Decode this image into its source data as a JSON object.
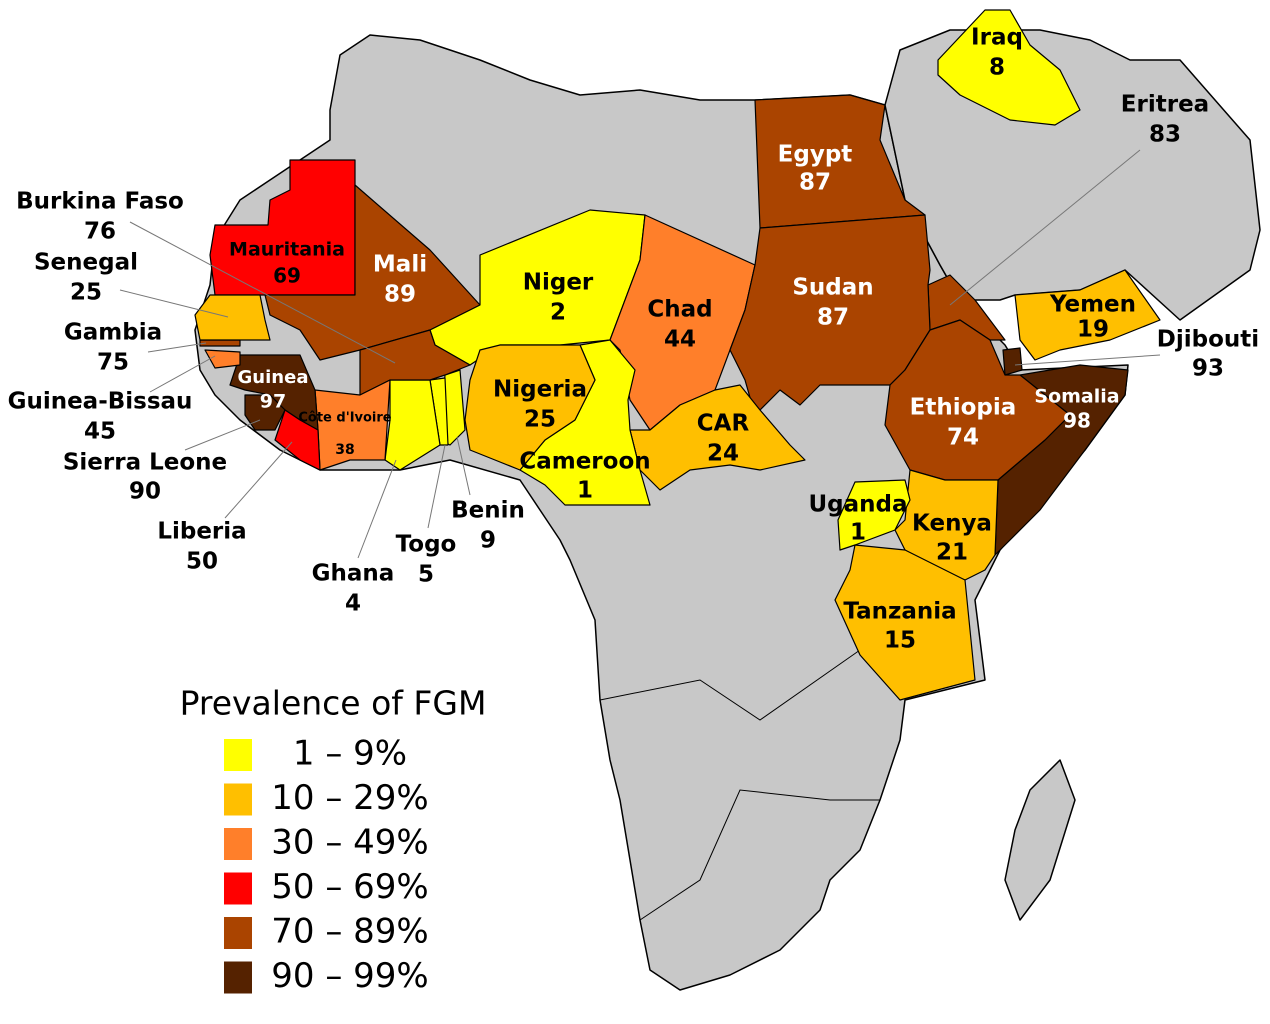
{
  "map": {
    "legend": {
      "title": "Prevalence of FGM",
      "items": [
        {
          "label": "1 – 9%",
          "color": "#ffff00"
        },
        {
          "label": "10 – 29%",
          "color": "#ffbf00"
        },
        {
          "label": "30 – 49%",
          "color": "#ff7f2a"
        },
        {
          "label": "50 – 69%",
          "color": "#ff0000"
        },
        {
          "label": "70 – 89%",
          "color": "#aa4400"
        },
        {
          "label": "90 – 99%",
          "color": "#552200"
        }
      ]
    },
    "countries": [
      {
        "name": "Iraq",
        "value": 8,
        "color": "#ffff00"
      },
      {
        "name": "Eritrea",
        "value": 83,
        "color": "#aa4400"
      },
      {
        "name": "Egypt",
        "value": 87,
        "color": "#aa4400"
      },
      {
        "name": "Mauritania",
        "value": 69,
        "color": "#ff0000"
      },
      {
        "name": "Mali",
        "value": 89,
        "color": "#aa4400"
      },
      {
        "name": "Niger",
        "value": 2,
        "color": "#ffff00"
      },
      {
        "name": "Chad",
        "value": 44,
        "color": "#ff7f2a"
      },
      {
        "name": "Sudan",
        "value": 87,
        "color": "#aa4400"
      },
      {
        "name": "Yemen",
        "value": 19,
        "color": "#ffbf00"
      },
      {
        "name": "Djibouti",
        "value": 93,
        "color": "#552200"
      },
      {
        "name": "Somalia",
        "value": 98,
        "color": "#552200"
      },
      {
        "name": "Ethiopia",
        "value": 74,
        "color": "#aa4400"
      },
      {
        "name": "Kenya",
        "value": 21,
        "color": "#ffbf00"
      },
      {
        "name": "Uganda",
        "value": 1,
        "color": "#ffff00"
      },
      {
        "name": "Tanzania",
        "value": 15,
        "color": "#ffbf00"
      },
      {
        "name": "CAR",
        "value": 24,
        "color": "#ffbf00"
      },
      {
        "name": "Cameroon",
        "value": 1,
        "color": "#ffff00"
      },
      {
        "name": "Nigeria",
        "value": 25,
        "color": "#ffbf00"
      },
      {
        "name": "Benin",
        "value": 9,
        "color": "#ffff00"
      },
      {
        "name": "Togo",
        "value": 5,
        "color": "#ffff00"
      },
      {
        "name": "Ghana",
        "value": 4,
        "color": "#ffff00"
      },
      {
        "name": "Burkina Faso",
        "value": 76,
        "color": "#aa4400"
      },
      {
        "name": "Côte d'Ivoire",
        "value": 38,
        "color": "#ff7f2a"
      },
      {
        "name": "Guinea",
        "value": 97,
        "color": "#552200"
      },
      {
        "name": "Sierra Leone",
        "value": 90,
        "color": "#552200"
      },
      {
        "name": "Liberia",
        "value": 50,
        "color": "#ff0000"
      },
      {
        "name": "Guinea-Bissau",
        "value": 45,
        "color": "#ff7f2a"
      },
      {
        "name": "Gambia",
        "value": 75,
        "color": "#aa4400"
      },
      {
        "name": "Senegal",
        "value": 25,
        "color": "#ffbf00"
      }
    ]
  }
}
